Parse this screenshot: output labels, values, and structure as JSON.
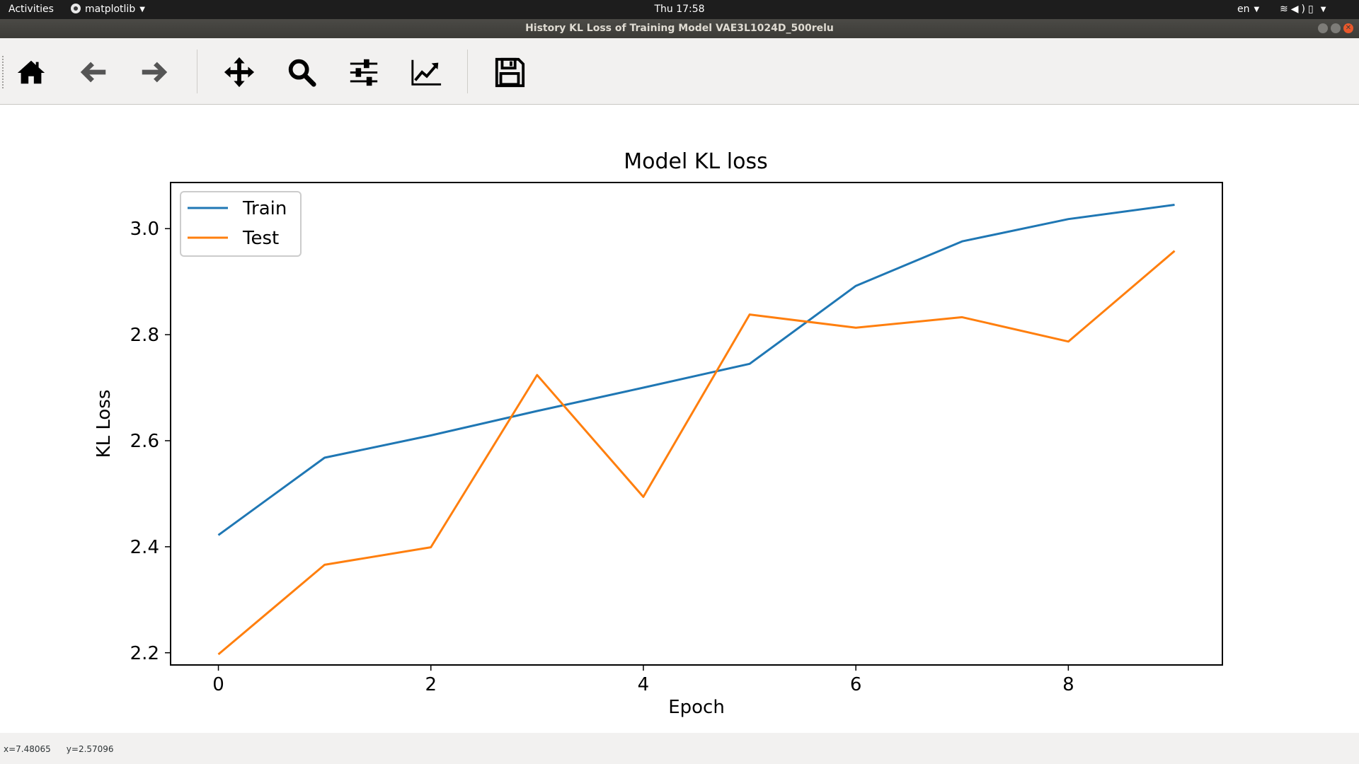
{
  "topbar": {
    "activities": "Activities",
    "app_name": "matplotlib",
    "clock": "Thu 17:58",
    "language": "en"
  },
  "window": {
    "title": "History KL Loss of Training Model VAE3L1024D_500relu"
  },
  "toolbar": {
    "items": [
      {
        "name": "home",
        "icon": "home-icon"
      },
      {
        "name": "back",
        "icon": "arrow-left-icon"
      },
      {
        "name": "forward",
        "icon": "arrow-right-icon"
      },
      {
        "name": "pan",
        "icon": "move-icon"
      },
      {
        "name": "zoom",
        "icon": "magnifier-icon"
      },
      {
        "name": "configure-subplots",
        "icon": "sliders-icon"
      },
      {
        "name": "edit-axis",
        "icon": "line-chart-icon"
      },
      {
        "name": "save",
        "icon": "floppy-disk-icon"
      }
    ]
  },
  "status": {
    "x": "x=7.48065",
    "y": "y=2.57096"
  },
  "chart_data": {
    "type": "line",
    "title": "Model KL loss",
    "xlabel": "Epoch",
    "ylabel": "KL Loss",
    "xlim": [
      -0.45,
      9.45
    ],
    "ylim": [
      2.177,
      3.087
    ],
    "xticks": [
      0,
      2,
      4,
      6,
      8
    ],
    "yticks": [
      2.2,
      2.4,
      2.6,
      2.8,
      3.0
    ],
    "grid": false,
    "legend_position": "top-left",
    "x": [
      0,
      1,
      2,
      3,
      4,
      5,
      6,
      7,
      8,
      9
    ],
    "series": [
      {
        "name": "Train",
        "color": "#1f77b4",
        "values": [
          2.422,
          2.568,
          2.61,
          2.656,
          2.7,
          2.745,
          2.892,
          2.976,
          3.018,
          3.045
        ]
      },
      {
        "name": "Test",
        "color": "#ff7f0e",
        "values": [
          2.197,
          2.366,
          2.399,
          2.724,
          2.494,
          2.838,
          2.813,
          2.833,
          2.787,
          2.958
        ]
      }
    ]
  }
}
